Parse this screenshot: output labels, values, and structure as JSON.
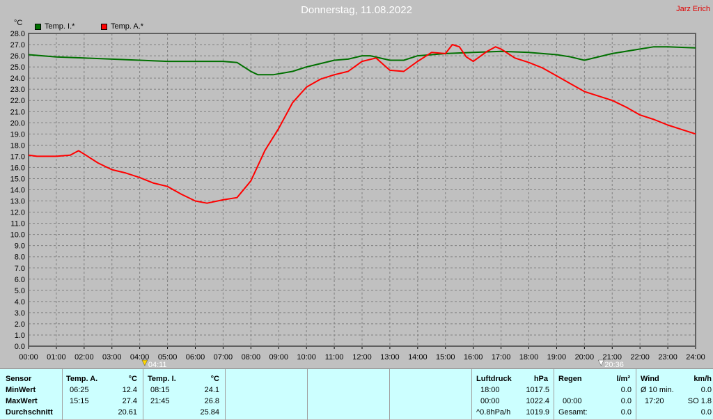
{
  "header": {
    "title": "Donnerstag, 11.08.2022",
    "author": "Jarz Erich"
  },
  "chart_data": {
    "type": "line",
    "unit_label": "°C",
    "ylim": [
      0,
      28
    ],
    "yticks": [
      "0.0",
      "1.0",
      "2.0",
      "3.0",
      "4.0",
      "5.0",
      "6.0",
      "7.0",
      "8.0",
      "9.0",
      "10.0",
      "11.0",
      "12.0",
      "13.0",
      "14.0",
      "15.0",
      "16.0",
      "17.0",
      "18.0",
      "19.0",
      "20.0",
      "21.0",
      "22.0",
      "23.0",
      "24.0",
      "25.0",
      "26.0",
      "27.0",
      "28.0"
    ],
    "xticks": [
      "00:00",
      "01:00",
      "02:00",
      "03:00",
      "04:00",
      "05:00",
      "06:00",
      "07:00",
      "08:00",
      "09:00",
      "10:00",
      "11:00",
      "12:00",
      "13:00",
      "14:00",
      "15:00",
      "16:00",
      "17:00",
      "18:00",
      "19:00",
      "20:00",
      "21:00",
      "22:00",
      "23:00",
      "24:00"
    ],
    "grid": true,
    "legend_position": "top-left",
    "series": [
      {
        "name": "Temp. I.*",
        "color": "#007000",
        "points": [
          [
            0,
            26.1
          ],
          [
            1,
            25.9
          ],
          [
            2,
            25.8
          ],
          [
            3,
            25.7
          ],
          [
            4,
            25.6
          ],
          [
            5,
            25.5
          ],
          [
            6,
            25.5
          ],
          [
            7,
            25.5
          ],
          [
            7.5,
            25.4
          ],
          [
            8,
            24.6
          ],
          [
            8.25,
            24.3
          ],
          [
            8.8,
            24.3
          ],
          [
            9.5,
            24.6
          ],
          [
            10,
            25.0
          ],
          [
            11,
            25.6
          ],
          [
            11.5,
            25.7
          ],
          [
            12,
            26.0
          ],
          [
            12.3,
            26.0
          ],
          [
            13,
            25.6
          ],
          [
            13.5,
            25.6
          ],
          [
            14,
            26.0
          ],
          [
            15,
            26.2
          ],
          [
            16,
            26.3
          ],
          [
            17,
            26.4
          ],
          [
            18,
            26.3
          ],
          [
            19,
            26.1
          ],
          [
            19.5,
            25.9
          ],
          [
            20,
            25.6
          ],
          [
            21,
            26.2
          ],
          [
            22,
            26.6
          ],
          [
            22.5,
            26.8
          ],
          [
            23,
            26.8
          ],
          [
            24,
            26.7
          ]
        ]
      },
      {
        "name": "Temp. A.*",
        "color": "#ff0000",
        "points": [
          [
            0,
            17.1
          ],
          [
            0.3,
            17.0
          ],
          [
            1,
            17.0
          ],
          [
            1.5,
            17.1
          ],
          [
            1.8,
            17.5
          ],
          [
            2,
            17.2
          ],
          [
            2.5,
            16.4
          ],
          [
            3,
            15.8
          ],
          [
            3.5,
            15.5
          ],
          [
            4,
            15.1
          ],
          [
            4.5,
            14.6
          ],
          [
            5,
            14.3
          ],
          [
            5.5,
            13.6
          ],
          [
            6,
            13.0
          ],
          [
            6.42,
            12.8
          ],
          [
            7,
            13.1
          ],
          [
            7.5,
            13.3
          ],
          [
            8,
            14.8
          ],
          [
            8.5,
            17.5
          ],
          [
            9,
            19.5
          ],
          [
            9.5,
            21.8
          ],
          [
            10,
            23.2
          ],
          [
            10.5,
            23.9
          ],
          [
            11,
            24.3
          ],
          [
            11.5,
            24.6
          ],
          [
            12,
            25.5
          ],
          [
            12.5,
            25.8
          ],
          [
            13,
            24.7
          ],
          [
            13.5,
            24.6
          ],
          [
            14,
            25.5
          ],
          [
            14.5,
            26.3
          ],
          [
            15,
            26.2
          ],
          [
            15.25,
            27.0
          ],
          [
            15.5,
            26.8
          ],
          [
            15.75,
            25.9
          ],
          [
            16,
            25.5
          ],
          [
            16.5,
            26.4
          ],
          [
            16.8,
            26.8
          ],
          [
            17,
            26.6
          ],
          [
            17.5,
            25.8
          ],
          [
            18,
            25.4
          ],
          [
            18.5,
            24.9
          ],
          [
            19,
            24.2
          ],
          [
            19.5,
            23.5
          ],
          [
            20,
            22.8
          ],
          [
            20.5,
            22.4
          ],
          [
            21,
            22.0
          ],
          [
            21.5,
            21.4
          ],
          [
            22,
            20.7
          ],
          [
            22.5,
            20.3
          ],
          [
            23,
            19.8
          ],
          [
            23.5,
            19.4
          ],
          [
            24,
            19.0
          ]
        ]
      }
    ],
    "markers": [
      {
        "label": "04:11",
        "x": 4.18
      },
      {
        "label": "20:36",
        "x": 20.6
      }
    ]
  },
  "table": {
    "col1": {
      "header": "Sensor",
      "rows": [
        "MinWert",
        "MaxWert",
        "Durchschnitt"
      ]
    },
    "col2": {
      "header": "Temp. A.",
      "unit": "°C",
      "min_time": "06:25",
      "min_val": "12.4",
      "max_time": "15:15",
      "max_val": "27.4",
      "avg": "20.61"
    },
    "col3": {
      "header": "Temp. I.",
      "unit": "°C",
      "min_time": "08:15",
      "min_val": "24.1",
      "max_time": "21:45",
      "max_val": "26.8",
      "avg": "25.84"
    },
    "pressure": {
      "header": "Luftdruck",
      "unit": "hPa",
      "t1": "18:00",
      "v1": "1017.5",
      "t2": "00:00",
      "v2": "1022.4",
      "t3": "^0.8hPa/h",
      "v3": "1019.9"
    },
    "rain": {
      "header": "Regen",
      "unit": "l/m²",
      "v1": "0.0",
      "t2": "00:00",
      "v2": "0.0",
      "t3": "Gesamt:",
      "v3": "0.0"
    },
    "wind": {
      "header": "Wind",
      "unit": "km/h",
      "t1": "Ø 10 min.",
      "v1": "0.0",
      "t2": "17:20",
      "v2": "SO 1.8",
      "v3": "0.0"
    }
  }
}
